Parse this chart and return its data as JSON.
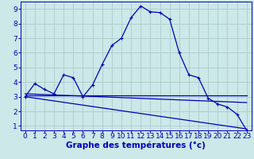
{
  "xlabel": "Graphe des températures (°c)",
  "background_color": "#cce8e8",
  "grid_color": "#aacccc",
  "line_color": "#0000bb",
  "xlim": [
    -0.5,
    23.5
  ],
  "ylim": [
    0.7,
    9.5
  ],
  "xticks": [
    0,
    1,
    2,
    3,
    4,
    5,
    6,
    7,
    8,
    9,
    10,
    11,
    12,
    13,
    14,
    15,
    16,
    17,
    18,
    19,
    20,
    21,
    22,
    23
  ],
  "yticks": [
    1,
    2,
    3,
    4,
    5,
    6,
    7,
    8,
    9
  ],
  "line_main": {
    "x": [
      0,
      1,
      2,
      3,
      4,
      5,
      6,
      7,
      8,
      9,
      10,
      11,
      12,
      13,
      14,
      15,
      16,
      17,
      18,
      19,
      20,
      21,
      22,
      23
    ],
    "y": [
      3.0,
      3.9,
      3.5,
      3.2,
      4.5,
      4.3,
      3.0,
      3.8,
      5.2,
      6.5,
      7.0,
      8.4,
      9.2,
      8.8,
      8.75,
      8.3,
      6.0,
      4.5,
      4.3,
      2.9,
      2.5,
      2.3,
      1.8,
      0.7
    ]
  },
  "line_flat": {
    "x": [
      0,
      23
    ],
    "y": [
      3.1,
      3.1
    ]
  },
  "line_diag1": {
    "x": [
      0,
      23
    ],
    "y": [
      3.2,
      2.6
    ]
  },
  "line_diag2": {
    "x": [
      0,
      23
    ],
    "y": [
      3.0,
      0.8
    ]
  },
  "xlabel_fontsize": 7.5,
  "tick_fontsize": 6.5
}
